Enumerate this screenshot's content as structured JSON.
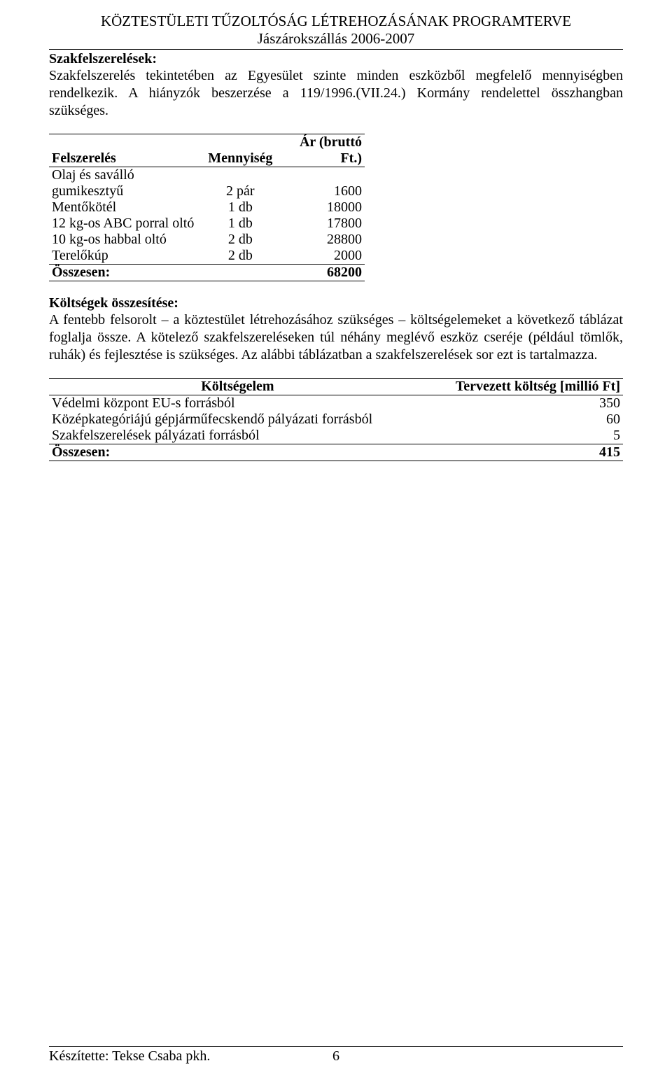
{
  "header": {
    "title": "KÖZTESTÜLETI TŰZOLTÓSÁG LÉTREHOZÁSÁNAK PROGRAMTERVE",
    "subtitle": "Jászárokszállás 2006-2007"
  },
  "section1": {
    "title": "Szakfelszerelések:",
    "para": "Szakfelszerelés tekintetében az Egyesület szinte minden eszközből megfelelő mennyiségben rendelkezik. A hiányzók beszerzése a 119/1996.(VII.24.) Kormány rendelettel összhangban szükséges."
  },
  "table1": {
    "headers": {
      "item": "Felszerelés",
      "qty": "Mennyiség",
      "price": "Ár (bruttó Ft.)"
    },
    "rows": [
      {
        "item": "Olaj és saválló gumikesztyű",
        "qty": "2 pár",
        "price": "1600"
      },
      {
        "item": "Mentőkötél",
        "qty": "1 db",
        "price": "18000"
      },
      {
        "item": "12 kg-os ABC porral oltó",
        "qty": "1 db",
        "price": "17800"
      },
      {
        "item": "10 kg-os habbal oltó",
        "qty": "2 db",
        "price": "28800"
      },
      {
        "item": "Terelőkúp",
        "qty": "2 db",
        "price": "2000"
      }
    ],
    "total_label": "Összesen:",
    "total_value": "68200"
  },
  "section2": {
    "title": "Költségek összesítése:",
    "para": "A fentebb felsorolt – a köztestület létrehozásához szükséges – költségelemeket a következő táblázat foglalja össze. A kötelező szakfelszereléseken túl néhány meglévő eszköz cseréje (például tömlők, ruhák) és fejlesztése is szükséges. Az alábbi táblázatban a szakfelszerelések sor ezt is tartalmazza."
  },
  "table2": {
    "headers": {
      "item": "Költségelem",
      "cost": "Tervezett költség [millió Ft]"
    },
    "rows": [
      {
        "item": "Védelmi központ EU-s forrásból",
        "cost": "350"
      },
      {
        "item": "Középkategóriájú gépjárműfecskendő pályázati forrásból",
        "cost": "60"
      },
      {
        "item": "Szakfelszerelések pályázati forrásból",
        "cost": "5"
      }
    ],
    "total_label": "Összesen:",
    "total_value": "415"
  },
  "footer": {
    "author": "Készítette: Tekse Csaba pkh.",
    "page": "6"
  }
}
